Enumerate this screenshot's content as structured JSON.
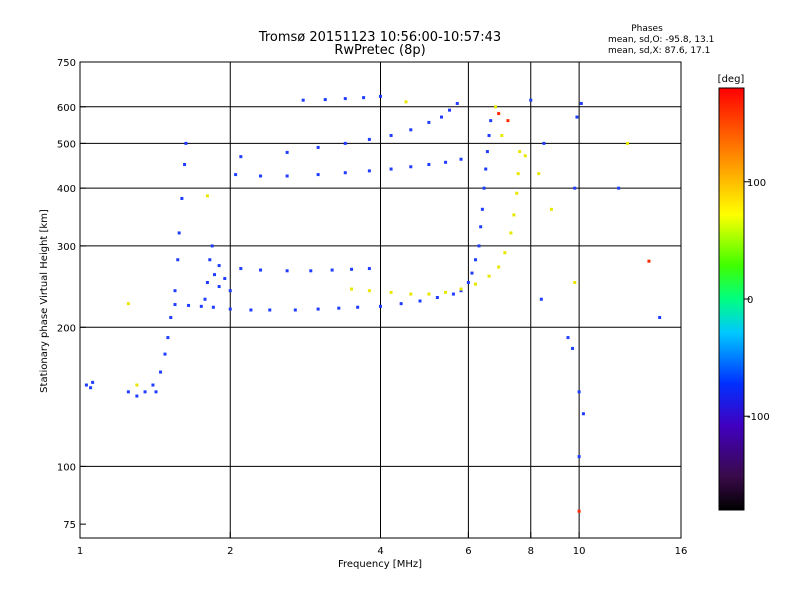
{
  "chart_data": {
    "type": "scatter",
    "title": "Tromsø 20151123 10:56:00-10:57:43",
    "subtitle": "RwPretec (8p)",
    "stats": {
      "heading": "Phases",
      "line_o": "mean, sd,O: -95.8, 13.1",
      "line_x": "mean, sd,X:  87.6, 17.1"
    },
    "xlabel": "Frequency [MHz]",
    "ylabel": "Stationary phase Virtual Height [km]",
    "x_scale": "log",
    "y_scale": "log",
    "xlim": [
      1,
      16
    ],
    "ylim": [
      70,
      750
    ],
    "xticks": [
      1,
      2,
      4,
      6,
      8,
      10,
      16
    ],
    "yticks": [
      75,
      100,
      200,
      300,
      400,
      500,
      600,
      750
    ],
    "grid_x": [
      2,
      4,
      6,
      8,
      10
    ],
    "grid_y": [
      100,
      200,
      300,
      400,
      500,
      600
    ],
    "grid": true,
    "colorbar": {
      "label": "[deg]",
      "range": [
        -180,
        180
      ],
      "ticks": [
        100,
        0,
        -100
      ],
      "colormap": "rainbow"
    },
    "series": [
      {
        "trace": "o1-lower-flat",
        "color": "#1f3cff",
        "points": [
          [
            1.55,
            224
          ],
          [
            1.65,
            223
          ],
          [
            1.75,
            222
          ],
          [
            1.85,
            221
          ],
          [
            2.0,
            219
          ],
          [
            2.2,
            218
          ],
          [
            2.4,
            218
          ],
          [
            2.7,
            218
          ],
          [
            3.0,
            219
          ],
          [
            3.3,
            220
          ],
          [
            3.6,
            221
          ],
          [
            4.0,
            222
          ],
          [
            4.4,
            225
          ],
          [
            4.8,
            228
          ],
          [
            5.2,
            232
          ],
          [
            5.6,
            236
          ]
        ]
      },
      {
        "trace": "o1-upper-flat",
        "color": "#1f3cff",
        "points": [
          [
            1.9,
            272
          ],
          [
            2.1,
            268
          ],
          [
            2.3,
            266
          ],
          [
            2.6,
            265
          ],
          [
            2.9,
            265
          ],
          [
            3.2,
            266
          ],
          [
            3.5,
            267
          ],
          [
            3.8,
            268
          ]
        ]
      },
      {
        "trace": "o1-rise",
        "color": "#1f3cff",
        "points": [
          [
            5.8,
            240
          ],
          [
            6.0,
            250
          ],
          [
            6.1,
            262
          ],
          [
            6.2,
            280
          ],
          [
            6.3,
            300
          ],
          [
            6.35,
            330
          ],
          [
            6.4,
            360
          ],
          [
            6.45,
            400
          ],
          [
            6.5,
            440
          ],
          [
            6.55,
            480
          ],
          [
            6.6,
            520
          ],
          [
            6.65,
            560
          ]
        ]
      },
      {
        "trace": "x-lower",
        "color": "#e8e800",
        "points": [
          [
            3.5,
            242
          ],
          [
            3.8,
            240
          ],
          [
            4.2,
            238
          ],
          [
            4.6,
            236
          ],
          [
            5.0,
            236
          ],
          [
            5.4,
            238
          ],
          [
            5.8,
            242
          ],
          [
            6.2,
            248
          ],
          [
            6.6,
            258
          ],
          [
            6.9,
            270
          ],
          [
            7.1,
            290
          ],
          [
            7.3,
            320
          ],
          [
            7.4,
            350
          ],
          [
            7.5,
            390
          ],
          [
            7.55,
            430
          ],
          [
            7.6,
            480
          ]
        ]
      },
      {
        "trace": "spread-left",
        "color": "#1f3cff",
        "points": [
          [
            1.42,
            145
          ],
          [
            1.45,
            160
          ],
          [
            1.48,
            175
          ],
          [
            1.5,
            190
          ],
          [
            1.52,
            210
          ],
          [
            1.55,
            240
          ],
          [
            1.57,
            280
          ],
          [
            1.58,
            320
          ],
          [
            1.6,
            380
          ],
          [
            1.62,
            450
          ],
          [
            1.63,
            500
          ],
          [
            1.4,
            150
          ],
          [
            1.35,
            145
          ],
          [
            1.3,
            142
          ],
          [
            1.25,
            145
          ]
        ]
      },
      {
        "trace": "spread-mid",
        "color": "#1f3cff",
        "points": [
          [
            1.78,
            230
          ],
          [
            1.8,
            250
          ],
          [
            1.82,
            280
          ],
          [
            1.84,
            300
          ],
          [
            1.86,
            260
          ],
          [
            1.9,
            245
          ],
          [
            1.95,
            255
          ],
          [
            2.0,
            240
          ]
        ]
      },
      {
        "trace": "e-region",
        "color": "#1f3cff",
        "points": [
          [
            1.03,
            150
          ],
          [
            1.05,
            148
          ],
          [
            1.06,
            152
          ]
        ]
      },
      {
        "trace": "f2-upper-1",
        "color": "#1f3cff",
        "points": [
          [
            2.05,
            428
          ],
          [
            2.3,
            425
          ],
          [
            2.6,
            425
          ],
          [
            3.0,
            428
          ],
          [
            3.4,
            432
          ],
          [
            3.8,
            436
          ],
          [
            4.2,
            440
          ],
          [
            4.6,
            445
          ],
          [
            5.0,
            450
          ],
          [
            5.4,
            455
          ],
          [
            5.8,
            462
          ]
        ]
      },
      {
        "trace": "f2-upper-2",
        "color": "#1f3cff",
        "points": [
          [
            2.1,
            468
          ],
          [
            2.6,
            478
          ],
          [
            3.0,
            490
          ],
          [
            3.4,
            500
          ],
          [
            3.8,
            510
          ],
          [
            4.2,
            520
          ],
          [
            4.6,
            535
          ],
          [
            5.0,
            555
          ],
          [
            5.3,
            570
          ],
          [
            5.5,
            590
          ],
          [
            5.7,
            610
          ]
        ]
      },
      {
        "trace": "f2-top",
        "color": "#1f3cff",
        "points": [
          [
            2.8,
            620
          ],
          [
            3.1,
            622
          ],
          [
            3.4,
            625
          ],
          [
            3.7,
            628
          ],
          [
            4.0,
            632
          ]
        ]
      },
      {
        "trace": "noise-yellow",
        "color": "#e8e800",
        "points": [
          [
            1.8,
            385
          ],
          [
            6.8,
            600
          ],
          [
            7.0,
            520
          ],
          [
            7.8,
            470
          ],
          [
            8.3,
            430
          ],
          [
            8.8,
            360
          ],
          [
            9.8,
            250
          ],
          [
            12.5,
            500
          ],
          [
            1.3,
            150
          ],
          [
            1.25,
            225
          ],
          [
            4.5,
            615
          ]
        ]
      },
      {
        "trace": "noise-blue",
        "color": "#1f3cff",
        "points": [
          [
            8.0,
            620
          ],
          [
            8.5,
            500
          ],
          [
            9.5,
            190
          ],
          [
            9.7,
            180
          ],
          [
            10.0,
            145
          ],
          [
            10.2,
            130
          ],
          [
            10.0,
            105
          ],
          [
            9.9,
            570
          ],
          [
            10.1,
            610
          ],
          [
            12.0,
            400
          ],
          [
            14.5,
            210
          ],
          [
            9.8,
            400
          ],
          [
            8.4,
            230
          ]
        ]
      },
      {
        "trace": "noise-red",
        "color": "#ff2a00",
        "points": [
          [
            13.8,
            278
          ],
          [
            10.0,
            80
          ],
          [
            7.2,
            560
          ],
          [
            6.9,
            580
          ]
        ]
      }
    ]
  }
}
